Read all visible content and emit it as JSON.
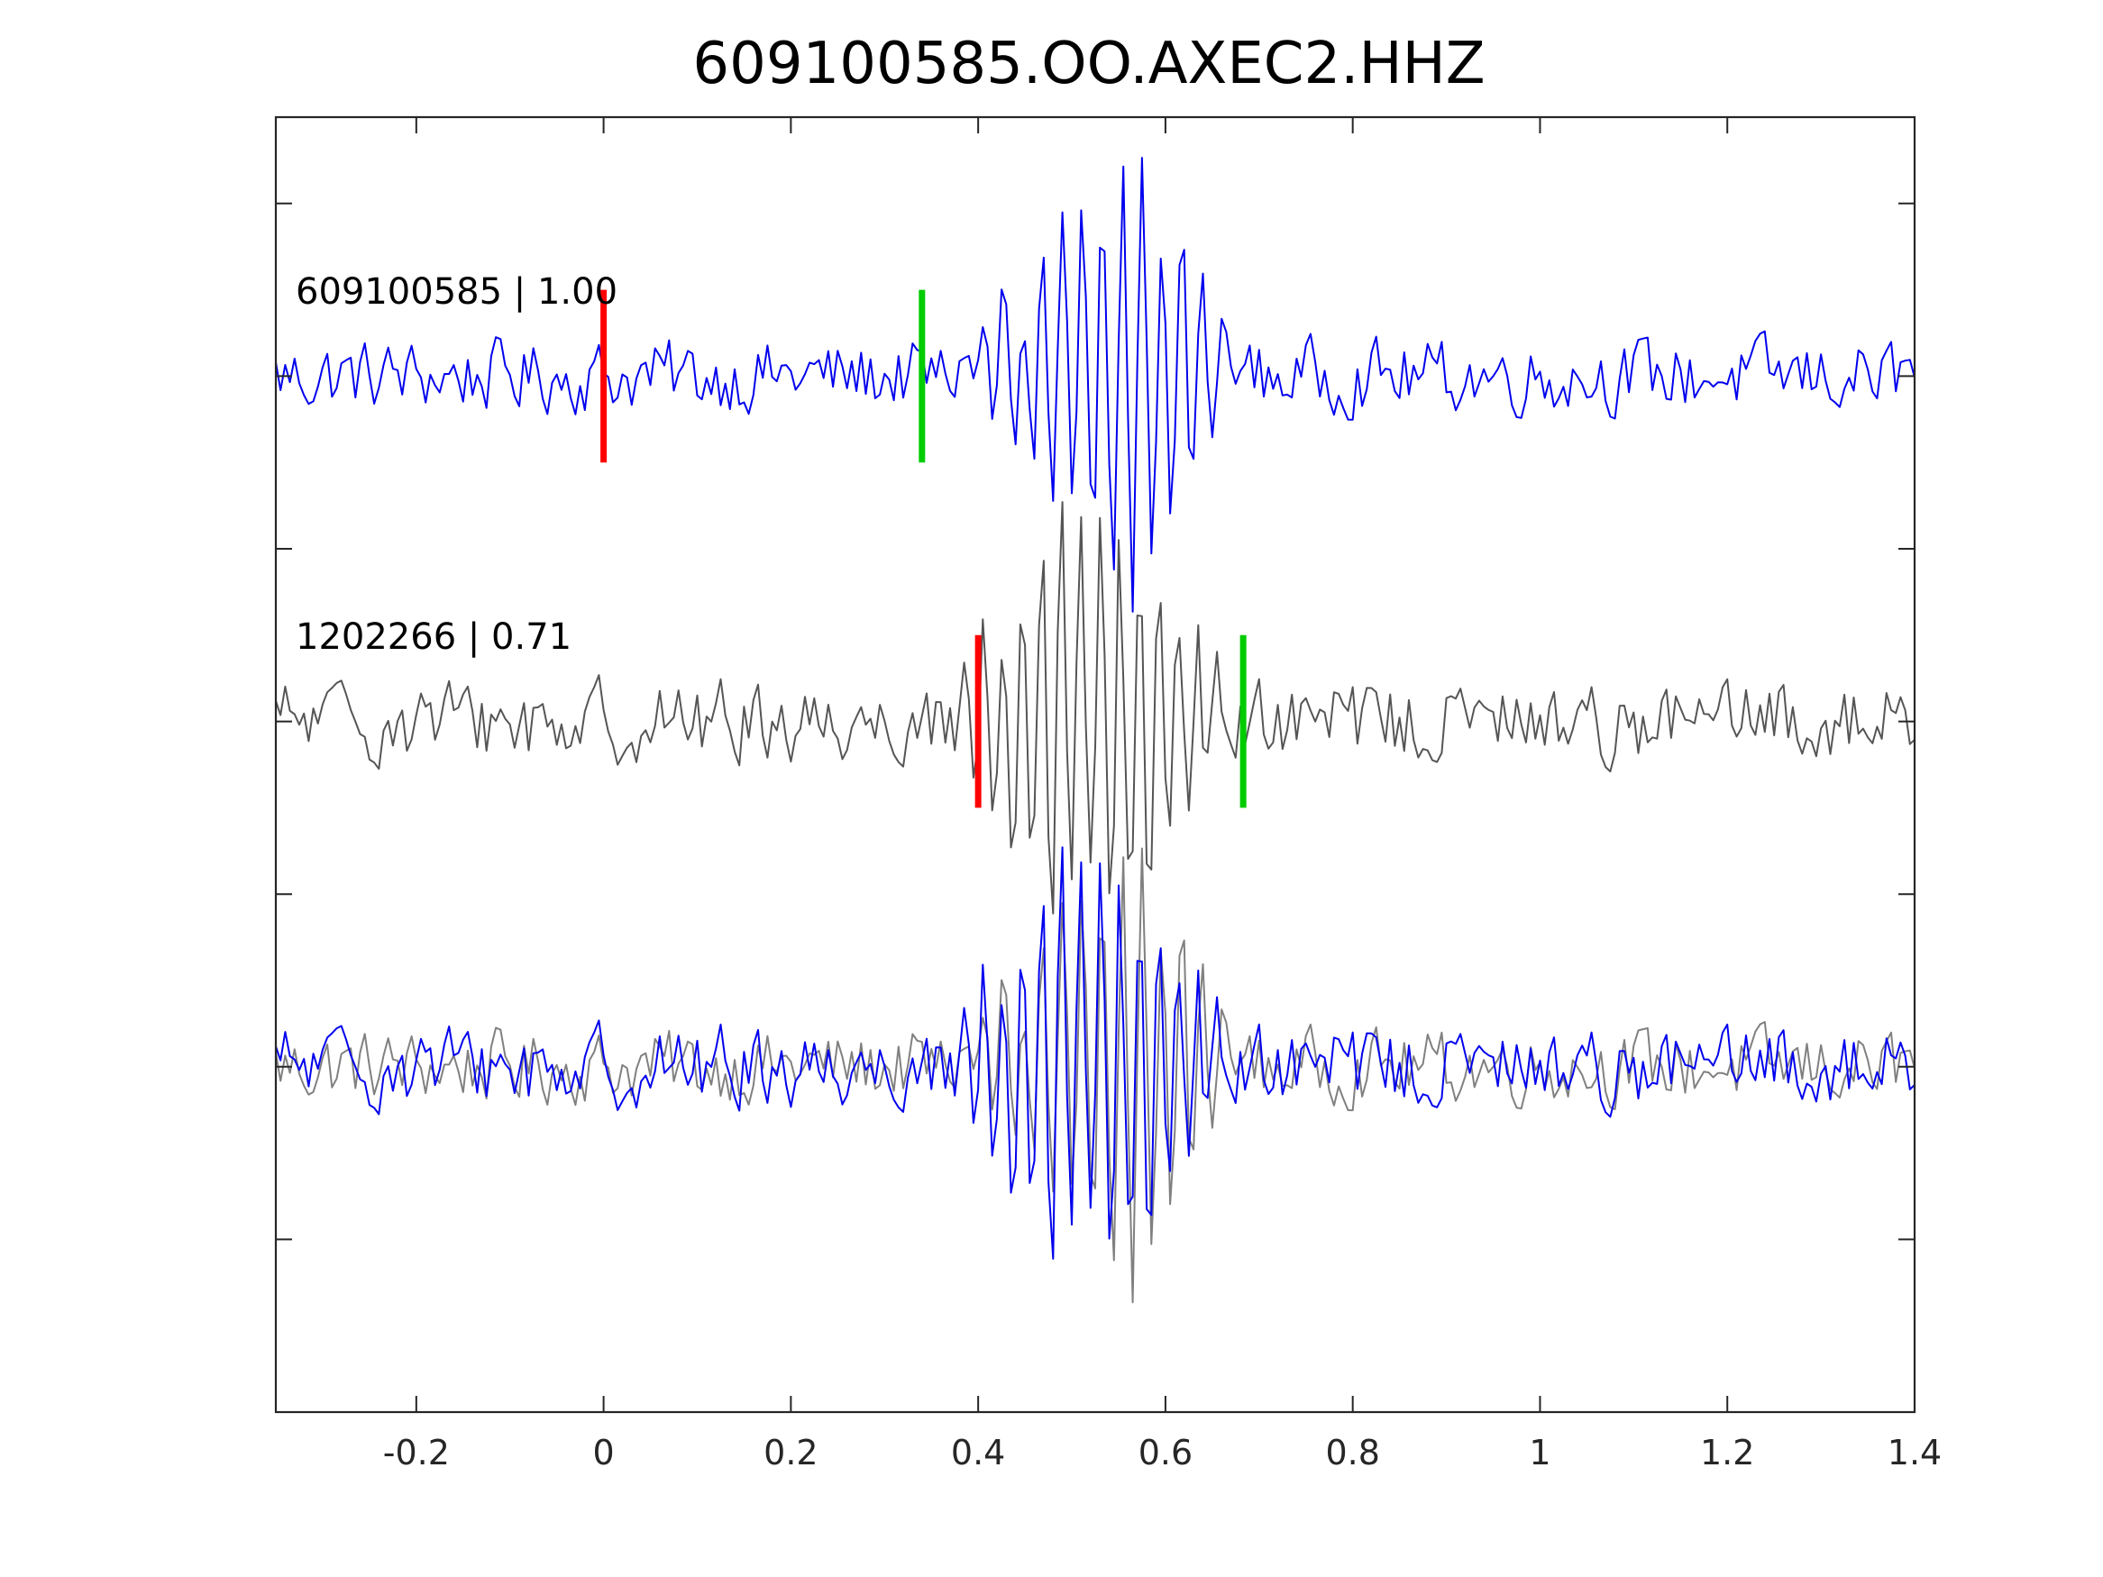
{
  "chart_data": {
    "type": "line",
    "title": "609100585.OO.AXEC2.HHZ",
    "xlabel": "",
    "ylabel": "",
    "xlim": [
      -0.35,
      1.4
    ],
    "xticks": [
      -0.2,
      0,
      0.2,
      0.4,
      0.6,
      0.8,
      1,
      1.2,
      1.4
    ],
    "xtick_labels": [
      "-0.2",
      "0",
      "0.2",
      "0.4",
      "0.6",
      "0.8",
      "1",
      "1.2",
      "1.4"
    ],
    "ylim": [
      -4,
      3.5
    ],
    "yticks": [
      -3,
      -2,
      -1,
      0,
      1,
      2,
      3
    ],
    "show_ytick_labels": false,
    "grid": false,
    "sample_interval": 0.005,
    "traces": [
      {
        "label": "609100585 | 1.00",
        "color": "#0000ee",
        "baseline": 2,
        "pick_p": 0.0,
        "pick_s": 0.34,
        "burst_start": 0.38,
        "burst_end": 0.68,
        "burst_center": 0.56,
        "dominant_frequency": 47,
        "peak_amplitude": 1.08,
        "noise_amplitude": 0.18
      },
      {
        "label": "1202266 | 0.71",
        "color": "#555555",
        "baseline": 0,
        "pick_p": 0.4,
        "pick_s": 0.683,
        "burst_start": 0.36,
        "burst_end": 0.68,
        "burst_center": 0.525,
        "dominant_frequency": 48,
        "peak_amplitude": 1.1,
        "noise_amplitude": 0.2
      },
      {
        "label": "",
        "overlay_of": [
          0,
          1
        ],
        "overlay_colors": [
          "#808080",
          "#0000ee"
        ],
        "baseline": -2
      }
    ],
    "pick_colors": {
      "p": "#ff0000",
      "s": "#00cc00"
    }
  }
}
